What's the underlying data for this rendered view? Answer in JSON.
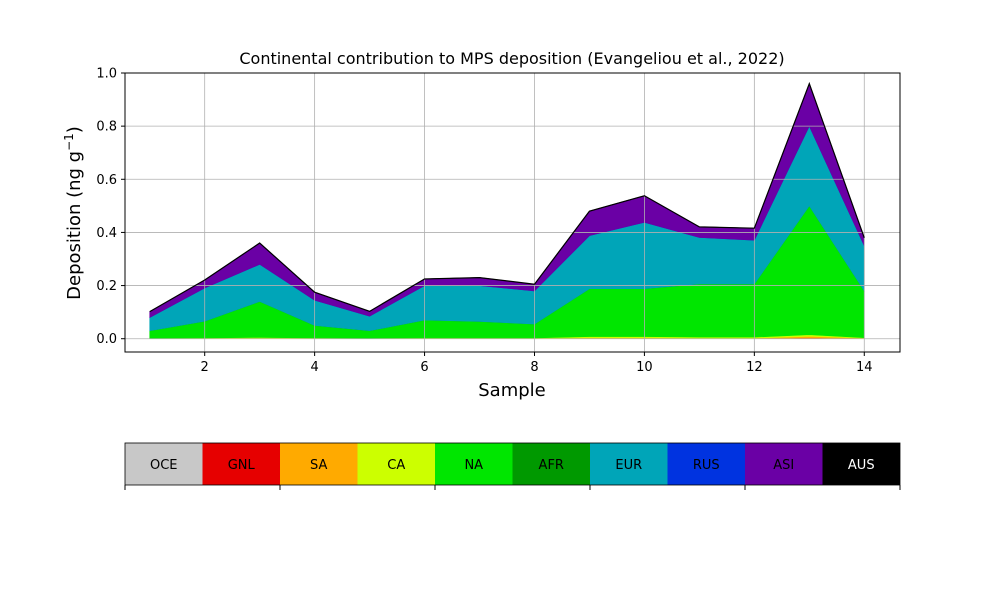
{
  "chart_data": {
    "type": "area",
    "stacked": true,
    "title": "Continental contribution to MPS deposition (Evangeliou et al., 2022)",
    "xlabel": "Sample",
    "ylabel_main": "Deposition (ng g",
    "ylabel_sup": "−1",
    "ylabel_end": ")",
    "x": [
      1,
      2,
      3,
      4,
      5,
      6,
      7,
      8,
      9,
      10,
      11,
      12,
      13,
      14
    ],
    "xlim": [
      0.55,
      14.65
    ],
    "ylim": [
      -0.05,
      1.0
    ],
    "xticks": [
      2,
      4,
      6,
      8,
      10,
      12,
      14
    ],
    "yticks": [
      0.0,
      0.2,
      0.4,
      0.6,
      0.8,
      1.0
    ],
    "ytick_labels": [
      "0.0",
      "0.2",
      "0.4",
      "0.6",
      "0.8",
      "1.0"
    ],
    "grid": true,
    "series": [
      {
        "key": "OCE",
        "color": "#c8c8c8",
        "values": [
          0,
          0,
          0,
          0,
          0,
          0,
          0,
          0,
          0,
          0,
          0,
          0,
          0,
          0
        ]
      },
      {
        "key": "GNL",
        "color": "#e60000",
        "values": [
          0,
          0,
          0,
          0,
          0,
          0,
          0,
          0,
          0,
          0,
          0,
          0,
          0.003,
          0
        ]
      },
      {
        "key": "SA",
        "color": "#ffaa00",
        "values": [
          0.001,
          0.001,
          0.002,
          0.001,
          0.001,
          0.001,
          0.001,
          0.001,
          0.003,
          0.003,
          0.002,
          0.002,
          0.006,
          0.002
        ]
      },
      {
        "key": "CA",
        "color": "#ccff00",
        "values": [
          0.001,
          0.002,
          0.003,
          0.002,
          0.001,
          0.002,
          0.002,
          0.002,
          0.005,
          0.005,
          0.004,
          0.004,
          0.006,
          0.002
        ]
      },
      {
        "key": "NA",
        "color": "#00e600",
        "values": [
          0.028,
          0.063,
          0.135,
          0.047,
          0.028,
          0.067,
          0.062,
          0.052,
          0.18,
          0.18,
          0.2,
          0.2,
          0.485,
          0.176
        ]
      },
      {
        "key": "AFR",
        "color": "#009900",
        "values": [
          0,
          0,
          0,
          0,
          0,
          0,
          0,
          0,
          0,
          0,
          0,
          0,
          0,
          0
        ]
      },
      {
        "key": "EUR",
        "color": "#00a5b8",
        "values": [
          0.05,
          0.125,
          0.14,
          0.095,
          0.055,
          0.13,
          0.135,
          0.125,
          0.2,
          0.25,
          0.175,
          0.165,
          0.3,
          0.17
        ]
      },
      {
        "key": "RUS",
        "color": "#0033e0",
        "values": [
          0,
          0,
          0,
          0,
          0,
          0,
          0,
          0,
          0,
          0,
          0,
          0,
          0,
          0
        ]
      },
      {
        "key": "ASI",
        "color": "#6a00a5",
        "values": [
          0.022,
          0.03,
          0.08,
          0.03,
          0.018,
          0.025,
          0.03,
          0.025,
          0.092,
          0.1,
          0.04,
          0.045,
          0.16,
          0.03
        ]
      },
      {
        "key": "AUS",
        "color": "#000000",
        "values": [
          0,
          0,
          0,
          0,
          0,
          0,
          0,
          0,
          0,
          0,
          0,
          0,
          0,
          0
        ]
      }
    ],
    "legend": {
      "placement": "bottom",
      "entries": [
        {
          "label": "OCE",
          "color": "#c8c8c8",
          "text_color": "#000000"
        },
        {
          "label": "GNL",
          "color": "#e60000",
          "text_color": "#000000"
        },
        {
          "label": "SA",
          "color": "#ffaa00",
          "text_color": "#000000"
        },
        {
          "label": "CA",
          "color": "#ccff00",
          "text_color": "#000000"
        },
        {
          "label": "NA",
          "color": "#00e600",
          "text_color": "#000000"
        },
        {
          "label": "AFR",
          "color": "#009900",
          "text_color": "#000000"
        },
        {
          "label": "EUR",
          "color": "#00a5b8",
          "text_color": "#000000"
        },
        {
          "label": "RUS",
          "color": "#0033e0",
          "text_color": "#000000"
        },
        {
          "label": "ASI",
          "color": "#6a00a5",
          "text_color": "#000000"
        },
        {
          "label": "AUS",
          "color": "#000000",
          "text_color": "#ffffff"
        }
      ]
    }
  }
}
